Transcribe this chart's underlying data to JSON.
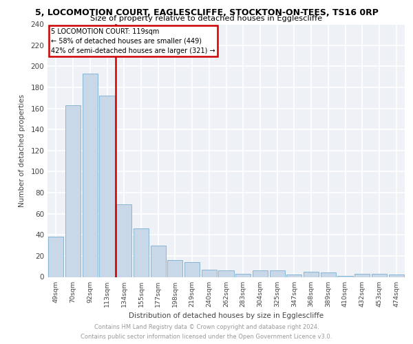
{
  "title1": "5, LOCOMOTION COURT, EAGLESCLIFFE, STOCKTON-ON-TEES, TS16 0RP",
  "title2": "Size of property relative to detached houses in Egglescliffe",
  "xlabel": "Distribution of detached houses by size in Egglescliffe",
  "ylabel": "Number of detached properties",
  "categories": [
    "49sqm",
    "70sqm",
    "92sqm",
    "113sqm",
    "134sqm",
    "155sqm",
    "177sqm",
    "198sqm",
    "219sqm",
    "240sqm",
    "262sqm",
    "283sqm",
    "304sqm",
    "325sqm",
    "347sqm",
    "368sqm",
    "389sqm",
    "410sqm",
    "432sqm",
    "453sqm",
    "474sqm"
  ],
  "values": [
    38,
    163,
    193,
    172,
    69,
    46,
    30,
    16,
    14,
    7,
    6,
    3,
    6,
    6,
    2,
    5,
    4,
    1,
    3,
    3,
    2
  ],
  "bar_color": "#c8d8e8",
  "bar_edge_color": "#7aaed0",
  "ref_line_x": 3.5,
  "ref_line_label": "5 LOCOMOTION COURT: 119sqm",
  "annotation1": "← 58% of detached houses are smaller (449)",
  "annotation2": "42% of semi-detached houses are larger (321) →",
  "box_color": "#cc0000",
  "footer1": "Contains HM Land Registry data © Crown copyright and database right 2024.",
  "footer2": "Contains public sector information licensed under the Open Government Licence v3.0.",
  "ylim": [
    0,
    240
  ],
  "yticks": [
    0,
    20,
    40,
    60,
    80,
    100,
    120,
    140,
    160,
    180,
    200,
    220,
    240
  ],
  "bg_color": "#eef2f7",
  "grid_color": "#ffffff"
}
